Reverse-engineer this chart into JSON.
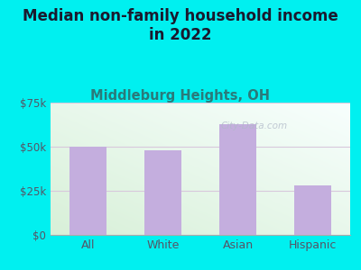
{
  "title": "Median non-family household income\nin 2022",
  "subtitle": "Middleburg Heights, OH",
  "categories": [
    "All",
    "White",
    "Asian",
    "Hispanic"
  ],
  "values": [
    50000,
    48000,
    63000,
    28000
  ],
  "bar_color": "#c4aede",
  "bar_edge_color": "#b8a4d0",
  "bg_color": "#00f0f0",
  "plot_bg_top_left": "#d8f0d8",
  "plot_bg_bottom_right": "#f8fffe",
  "title_color": "#1a1a2e",
  "subtitle_color": "#2a7a7a",
  "tick_color": "#555566",
  "ytick_label_color": "#555566",
  "ylim": [
    0,
    75000
  ],
  "yticks": [
    0,
    25000,
    50000,
    75000
  ],
  "ytick_labels": [
    "$0",
    "$25k",
    "$50k",
    "$75k"
  ],
  "watermark": "City-Data.com",
  "grid_color": "#d8c8dc",
  "title_fontsize": 12,
  "subtitle_fontsize": 10.5,
  "bar_width": 0.5
}
